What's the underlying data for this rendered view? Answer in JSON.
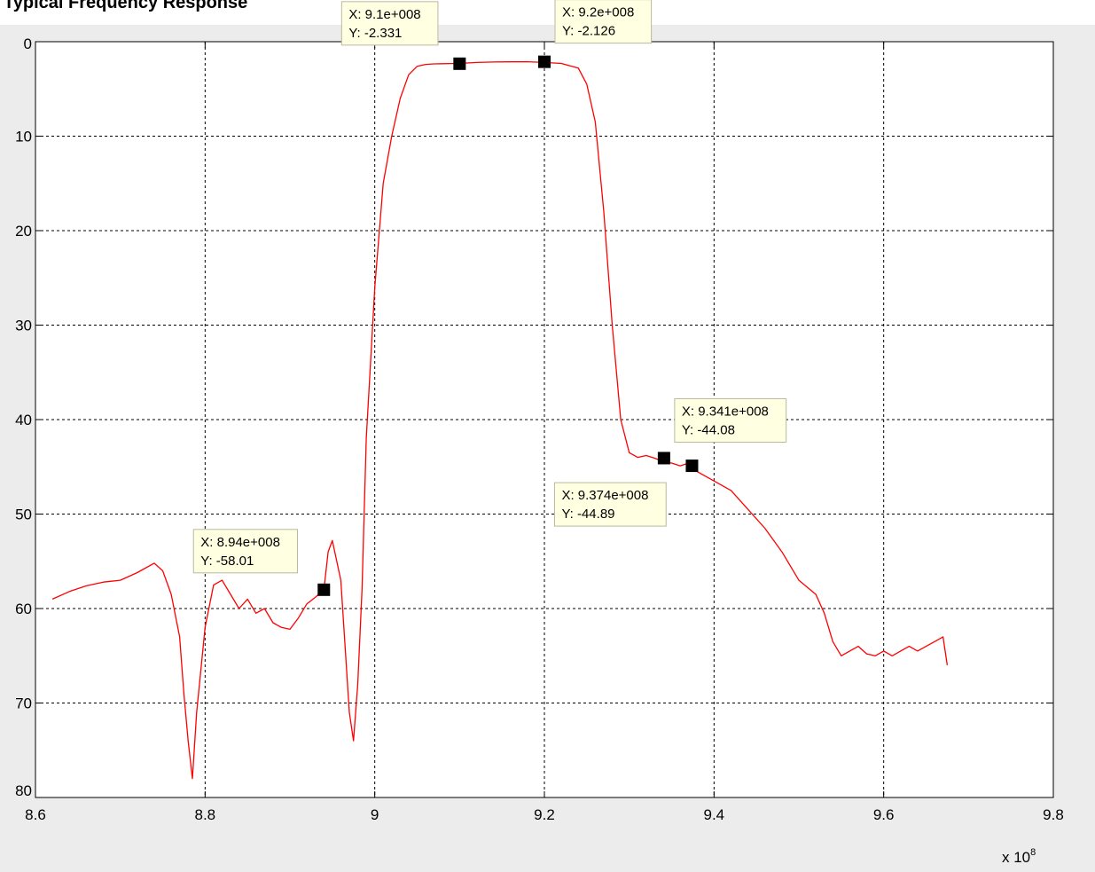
{
  "title": "Typical Frequency Response",
  "chart_data": {
    "type": "line",
    "title": "Typical Frequency Response",
    "xlabel": "",
    "ylabel": "",
    "x_exponent_label": "x 10",
    "x_exponent_power": "8",
    "xlim": [
      8.6,
      9.8
    ],
    "ylim": [
      0,
      80
    ],
    "y_reversed": true,
    "grid": true,
    "x_ticks": [
      8.6,
      8.8,
      9.0,
      9.2,
      9.4,
      9.6,
      9.8
    ],
    "x_tick_labels": [
      "8.6",
      "8.8",
      "9",
      "9.2",
      "9.4",
      "9.6",
      "9.8"
    ],
    "y_ticks": [
      0,
      10,
      20,
      30,
      40,
      50,
      60,
      70,
      80
    ],
    "y_tick_labels": [
      "0",
      "10",
      "20",
      "30",
      "40",
      "50",
      "60",
      "70",
      "80"
    ],
    "line_color": "#ff0000",
    "series": [
      {
        "x": [
          8.62,
          8.64,
          8.66,
          8.68,
          8.7,
          8.72,
          8.74,
          8.75,
          8.76,
          8.77,
          8.775,
          8.78,
          8.785,
          8.79,
          8.8,
          8.81,
          8.82,
          8.83,
          8.84,
          8.85,
          8.86,
          8.87,
          8.88,
          8.89,
          8.9,
          8.91,
          8.92,
          8.93,
          8.94,
          8.945,
          8.95,
          8.96,
          8.965,
          8.97,
          8.975,
          8.98,
          8.985,
          8.99,
          9.0,
          9.01,
          9.02,
          9.03,
          9.04,
          9.05,
          9.06,
          9.07,
          9.08,
          9.1,
          9.12,
          9.14,
          9.16,
          9.18,
          9.2,
          9.22,
          9.24,
          9.25,
          9.26,
          9.27,
          9.28,
          9.29,
          9.3,
          9.31,
          9.32,
          9.33,
          9.341,
          9.35,
          9.36,
          9.374,
          9.38,
          9.4,
          9.42,
          9.44,
          9.46,
          9.48,
          9.5,
          9.52,
          9.53,
          9.54,
          9.55,
          9.56,
          9.57,
          9.58,
          9.59,
          9.6,
          9.61,
          9.62,
          9.63,
          9.64,
          9.65,
          9.66,
          9.67,
          9.675
        ],
        "y": [
          59,
          58.2,
          57.6,
          57.2,
          57.0,
          56.2,
          55.2,
          56.0,
          58.5,
          63,
          69,
          74,
          78,
          71,
          62,
          57.5,
          57.0,
          58.5,
          60,
          59,
          60.5,
          60,
          61.5,
          62,
          62.2,
          61,
          59.5,
          58.8,
          58.01,
          54,
          52.8,
          57,
          64,
          71,
          74,
          68,
          58,
          42,
          26,
          15,
          10,
          6,
          3.5,
          2.6,
          2.4,
          2.35,
          2.331,
          2.3,
          2.2,
          2.15,
          2.13,
          2.126,
          2.2,
          2.3,
          2.8,
          4.5,
          8.5,
          18,
          30,
          40,
          43.5,
          44,
          43.8,
          44.08,
          44.5,
          44.6,
          44.89,
          44.5,
          45.5,
          46.5,
          47.5,
          49.5,
          51.5,
          54,
          57,
          58.5,
          60.5,
          63.5,
          65,
          64.5,
          64,
          64.8,
          65,
          64.5,
          65,
          64.5,
          64,
          64.5,
          64,
          63.5,
          63,
          66
        ]
      }
    ],
    "datatips": [
      {
        "x_text": "X: 9.1e+008",
        "y_text": "Y: -2.331",
        "x": 9.1,
        "y": 2.331
      },
      {
        "x_text": "X: 9.2e+008",
        "y_text": "Y: -2.126",
        "x": 9.2,
        "y": 2.126
      },
      {
        "x_text": "X: 9.341e+008",
        "y_text": "Y: -44.08",
        "x": 9.341,
        "y": 44.08
      },
      {
        "x_text": "X: 9.374e+008",
        "y_text": "Y: -44.89",
        "x": 9.374,
        "y": 44.89
      },
      {
        "x_text": "X: 8.94e+008",
        "y_text": "Y: -58.01",
        "x": 8.94,
        "y": 58.01
      }
    ]
  }
}
